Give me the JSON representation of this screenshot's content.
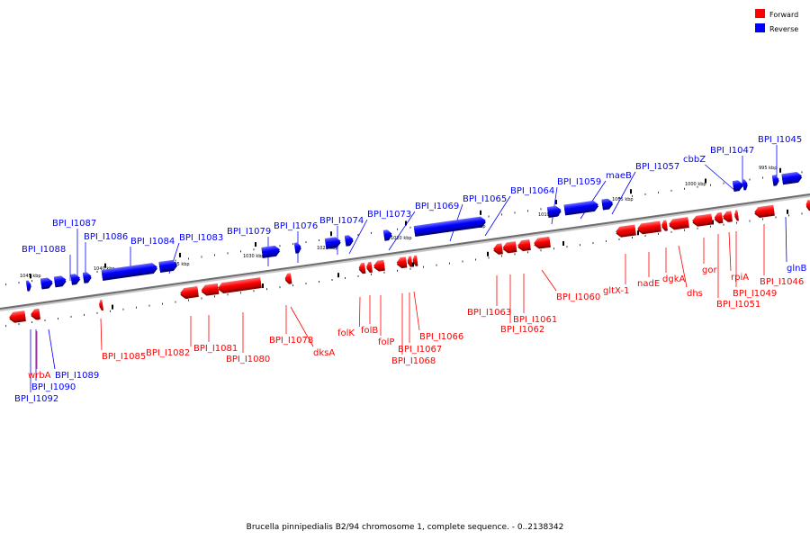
{
  "caption": "Brucella pinnipedialis B2/94 chromosome 1, complete sequence. - 0..2138342",
  "legend": [
    {
      "label": "Forward",
      "color": "#ff0000"
    },
    {
      "label": "Reverse",
      "color": "#0000ff"
    }
  ],
  "kbp_labels": [
    "1045 kbp",
    "1040 kbp",
    "1035 kbp",
    "1030 kbp",
    "1025 kbp",
    "1020 kbp",
    "1015 kbp",
    "1010 kbp",
    "1005 kbp",
    "1000 kbp",
    "995 kbp"
  ],
  "genes": [
    {
      "label": "wrbA",
      "strand": "forward"
    },
    {
      "label": "BPI_I1092",
      "strand": "reverse"
    },
    {
      "label": "BPI_I1090",
      "strand": "reverse"
    },
    {
      "label": "BPI_I1089",
      "strand": "reverse"
    },
    {
      "label": "BPI_I1088",
      "strand": "reverse"
    },
    {
      "label": "BPI_I1087",
      "strand": "reverse"
    },
    {
      "label": "BPI_I1086",
      "strand": "reverse"
    },
    {
      "label": "BPI_I1085",
      "strand": "forward"
    },
    {
      "label": "BPI_I1084",
      "strand": "reverse"
    },
    {
      "label": "BPI_I1083",
      "strand": "reverse"
    },
    {
      "label": "BPI_I1082",
      "strand": "forward"
    },
    {
      "label": "BPI_I1081",
      "strand": "forward"
    },
    {
      "label": "BPI_I1080",
      "strand": "forward"
    },
    {
      "label": "BPI_I1079",
      "strand": "reverse"
    },
    {
      "label": "BPI_I1078",
      "strand": "forward"
    },
    {
      "label": "BPI_I1076",
      "strand": "reverse"
    },
    {
      "label": "dksA",
      "strand": "forward"
    },
    {
      "label": "BPI_I1074",
      "strand": "reverse"
    },
    {
      "label": "BPI_I1073",
      "strand": "reverse"
    },
    {
      "label": "folK",
      "strand": "forward"
    },
    {
      "label": "folB",
      "strand": "forward"
    },
    {
      "label": "folP",
      "strand": "forward"
    },
    {
      "label": "BPI_I1069",
      "strand": "reverse"
    },
    {
      "label": "BPI_I1068",
      "strand": "forward"
    },
    {
      "label": "BPI_I1067",
      "strand": "forward"
    },
    {
      "label": "BPI_I1066",
      "strand": "forward"
    },
    {
      "label": "BPI_I1065",
      "strand": "reverse"
    },
    {
      "label": "BPI_I1064",
      "strand": "reverse"
    },
    {
      "label": "BPI_I1063",
      "strand": "forward"
    },
    {
      "label": "BPI_I1062",
      "strand": "forward"
    },
    {
      "label": "BPI_I1061",
      "strand": "forward"
    },
    {
      "label": "BPI_I1060",
      "strand": "forward"
    },
    {
      "label": "BPI_I1059",
      "strand": "reverse"
    },
    {
      "label": "maeB",
      "strand": "reverse"
    },
    {
      "label": "BPI_I1057",
      "strand": "reverse"
    },
    {
      "label": "gltX-1",
      "strand": "forward"
    },
    {
      "label": "nadE",
      "strand": "forward"
    },
    {
      "label": "dgkA",
      "strand": "forward"
    },
    {
      "label": "dhs",
      "strand": "forward"
    },
    {
      "label": "gor",
      "strand": "forward"
    },
    {
      "label": "cbbZ",
      "strand": "reverse"
    },
    {
      "label": "BPI_I1051",
      "strand": "forward"
    },
    {
      "label": "rpiA",
      "strand": "forward"
    },
    {
      "label": "BPI_I1049",
      "strand": "forward"
    },
    {
      "label": "BPI_I1047",
      "strand": "reverse"
    },
    {
      "label": "BPI_I1046",
      "strand": "forward"
    },
    {
      "label": "BPI_I1045",
      "strand": "reverse"
    },
    {
      "label": "glnB",
      "strand": "reverse"
    }
  ]
}
